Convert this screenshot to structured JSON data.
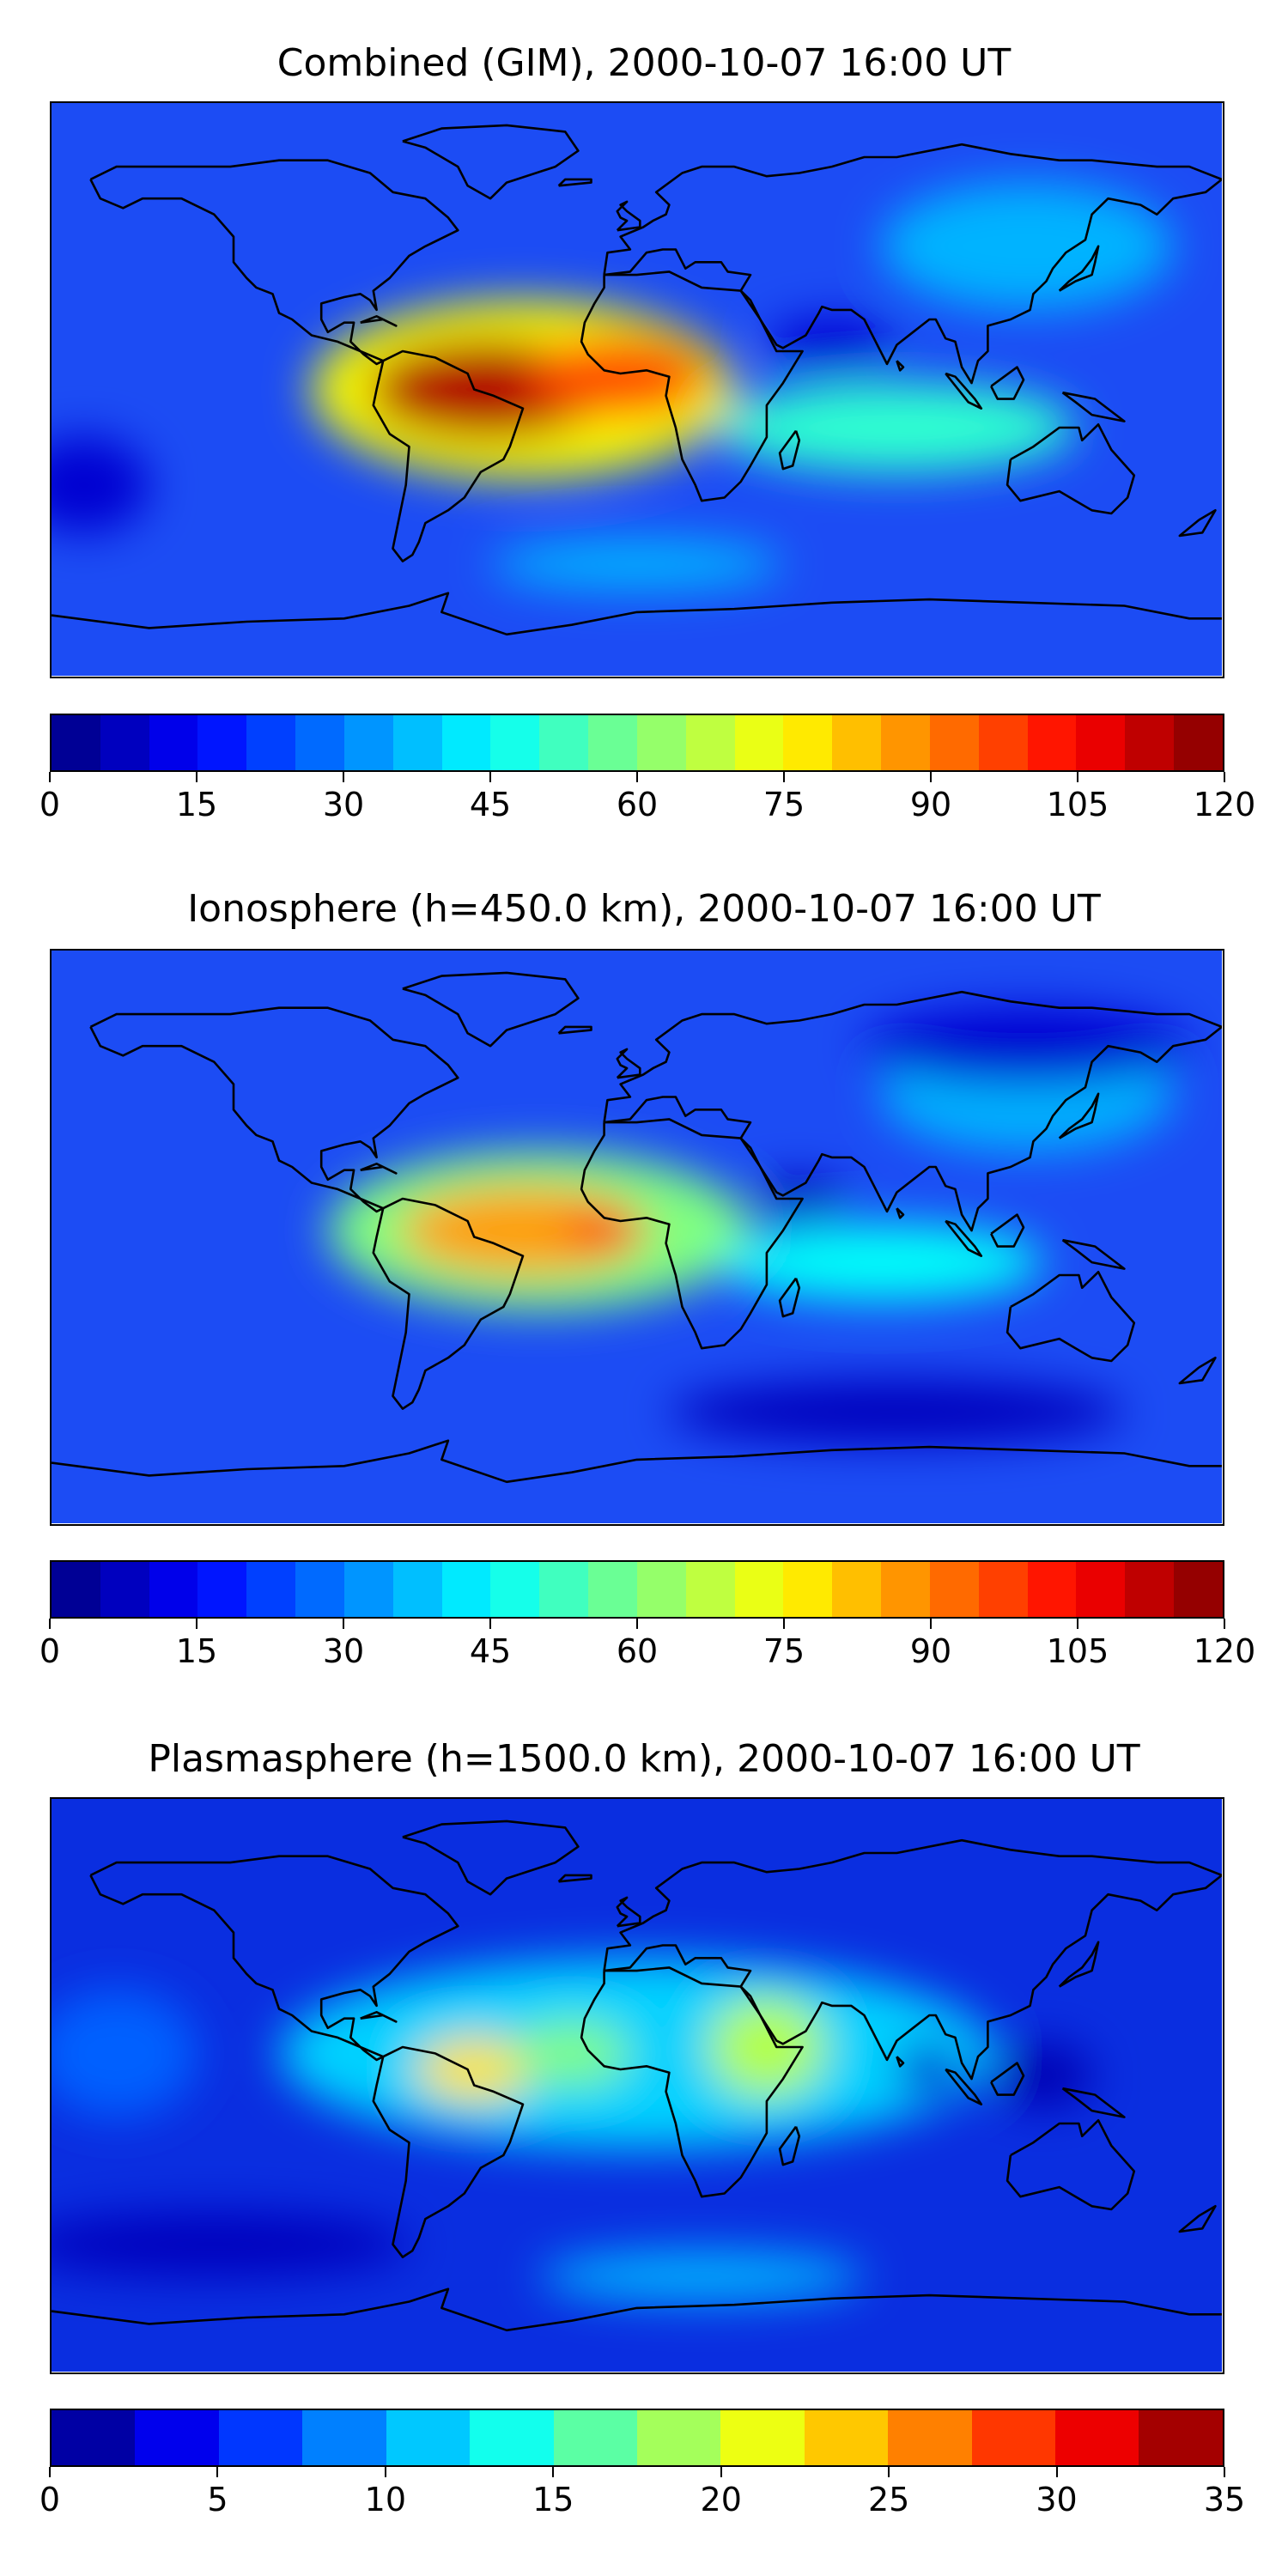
{
  "panels": [
    {
      "title": "Combined (GIM), 2000-10-07 16:00 UT",
      "colorbar": {
        "vmin": 0,
        "vmax": 120,
        "levels": 24,
        "ticks": [
          "0",
          "15",
          "30",
          "45",
          "60",
          "75",
          "90",
          "105",
          "120"
        ]
      },
      "background": "#1c4cf4",
      "blobs": [
        {
          "lon": -35,
          "lat": 0,
          "rx": 65,
          "ry": 28,
          "level": 0.62
        },
        {
          "lon": -45,
          "lat": 0,
          "rx": 38,
          "ry": 16,
          "level": 0.95
        },
        {
          "lon": -5,
          "lat": 4,
          "rx": 28,
          "ry": 13,
          "level": 0.8
        },
        {
          "lon": 80,
          "lat": -12,
          "rx": 55,
          "ry": 14,
          "level": 0.42
        },
        {
          "lon": 120,
          "lat": 45,
          "rx": 45,
          "ry": 20,
          "level": 0.3
        },
        {
          "lon": 60,
          "lat": 14,
          "rx": 20,
          "ry": 8,
          "level": 0.08
        },
        {
          "lon": 0,
          "lat": -55,
          "rx": 45,
          "ry": 8,
          "level": 0.3
        },
        {
          "lon": -170,
          "lat": -30,
          "rx": 20,
          "ry": 15,
          "level": 0.08
        }
      ]
    },
    {
      "title": "Ionosphere  (h=450.0 km), 2000-10-07 16:00 UT",
      "colorbar": {
        "vmin": 0,
        "vmax": 120,
        "levels": 24,
        "ticks": [
          "0",
          "15",
          "30",
          "45",
          "60",
          "75",
          "90",
          "105",
          "120"
        ]
      },
      "background": "#1c4cf4",
      "blobs": [
        {
          "lon": -30,
          "lat": 2,
          "rx": 65,
          "ry": 25,
          "level": 0.5
        },
        {
          "lon": -35,
          "lat": 2,
          "rx": 38,
          "ry": 14,
          "level": 0.72
        },
        {
          "lon": -10,
          "lat": 2,
          "rx": 12,
          "ry": 6,
          "level": 0.85
        },
        {
          "lon": 75,
          "lat": -8,
          "rx": 50,
          "ry": 12,
          "level": 0.38
        },
        {
          "lon": 120,
          "lat": 45,
          "rx": 45,
          "ry": 18,
          "level": 0.3
        },
        {
          "lon": 50,
          "lat": 12,
          "rx": 15,
          "ry": 6,
          "level": 0.05
        },
        {
          "lon": 120,
          "lat": 60,
          "rx": 50,
          "ry": 12,
          "level": 0.08
        },
        {
          "lon": 80,
          "lat": -55,
          "rx": 70,
          "ry": 10,
          "level": 0.06
        }
      ]
    },
    {
      "title": "Plasmasphere (h=1500.0 km), 2000-10-07 16:00 UT",
      "colorbar": {
        "vmin": 0,
        "vmax": 35,
        "levels": 14,
        "ticks": [
          "0",
          "5",
          "10",
          "15",
          "20",
          "25",
          "30",
          "35"
        ]
      },
      "background": "#0a2ee0",
      "blobs": [
        {
          "lon": 0,
          "lat": 10,
          "rx": 110,
          "ry": 30,
          "level": 0.33
        },
        {
          "lon": -50,
          "lat": 5,
          "rx": 18,
          "ry": 10,
          "level": 0.65
        },
        {
          "lon": 40,
          "lat": 12,
          "rx": 18,
          "ry": 16,
          "level": 0.55
        },
        {
          "lon": -20,
          "lat": 10,
          "rx": 18,
          "ry": 10,
          "level": 0.5
        },
        {
          "lon": 90,
          "lat": 5,
          "rx": 10,
          "ry": 8,
          "level": 0.08
        },
        {
          "lon": 125,
          "lat": 3,
          "rx": 15,
          "ry": 10,
          "level": 0.05
        },
        {
          "lon": -130,
          "lat": -50,
          "rx": 60,
          "ry": 10,
          "level": 0.06
        },
        {
          "lon": 20,
          "lat": -60,
          "rx": 50,
          "ry": 8,
          "level": 0.3
        },
        {
          "lon": -160,
          "lat": 10,
          "rx": 25,
          "ry": 20,
          "level": 0.22
        }
      ]
    }
  ]
}
